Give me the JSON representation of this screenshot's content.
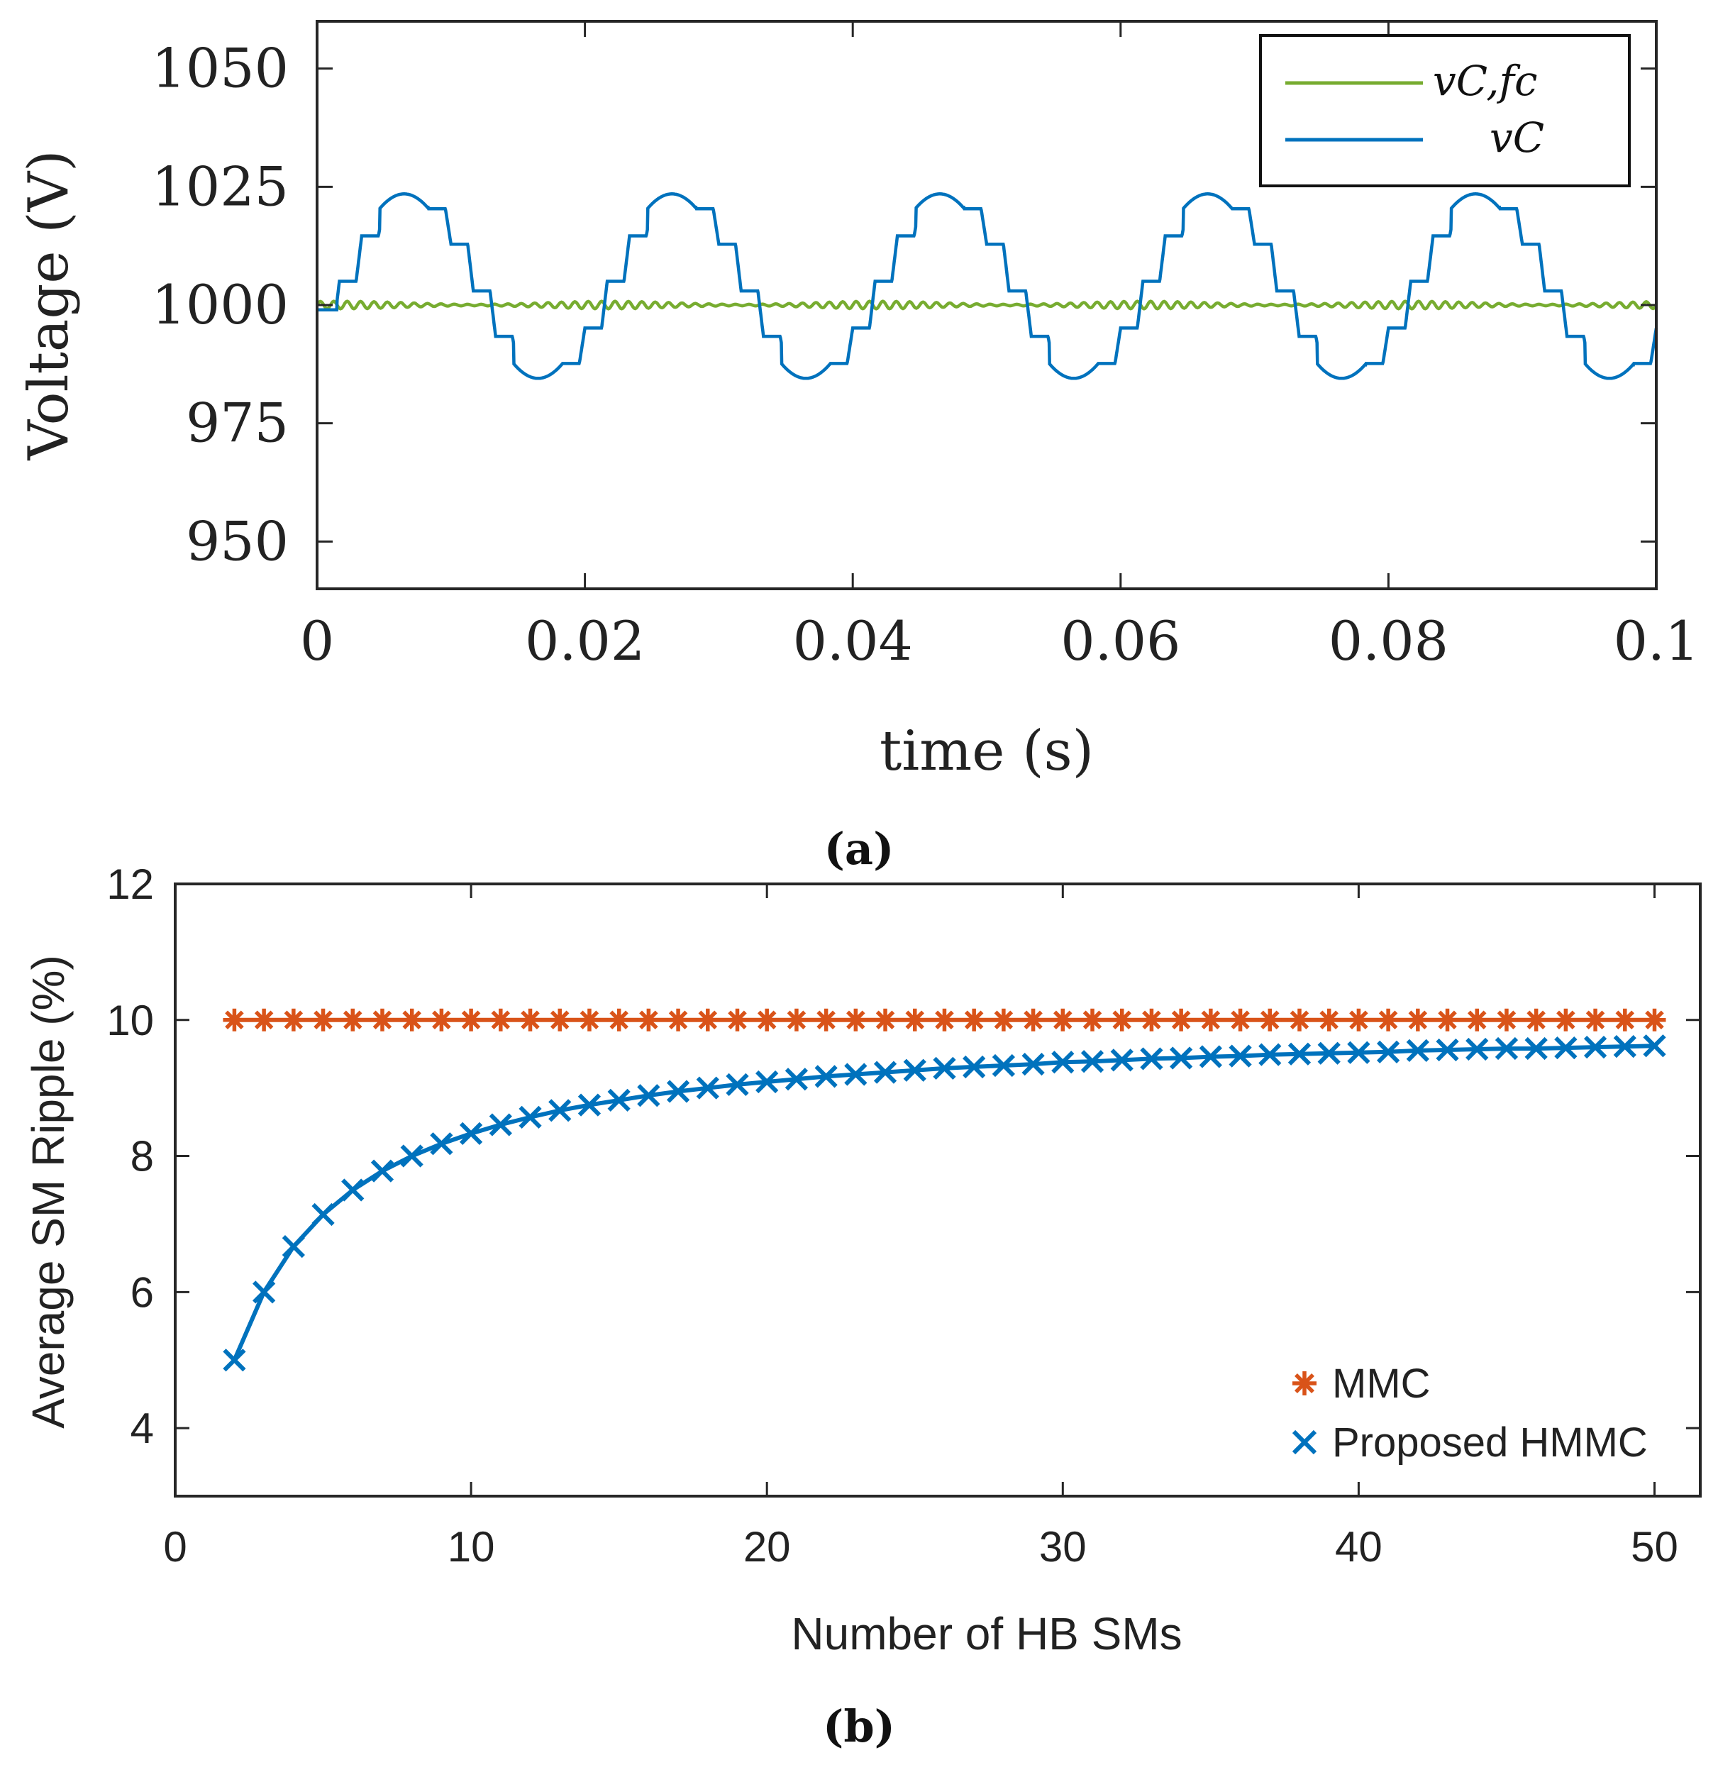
{
  "chart_data": [
    {
      "id": "a",
      "type": "line",
      "caption": "(a)",
      "xlabel": "time (s)",
      "ylabel": "Voltage (V)",
      "xlim": [
        0,
        0.1
      ],
      "ylim": [
        940,
        1060
      ],
      "xticks": [
        0,
        0.02,
        0.04,
        0.06,
        0.08,
        0.1
      ],
      "xtick_labels": [
        "0",
        "0.02",
        "0.04",
        "0.06",
        "0.08",
        "0.1"
      ],
      "yticks": [
        950,
        975,
        1000,
        1025,
        1050
      ],
      "ytick_labels": [
        "950",
        "975",
        "1000",
        "1025",
        "1050"
      ],
      "grid": false,
      "legend_position": "top-right",
      "series": [
        {
          "name": "v_C,fc",
          "label": "vC,fc",
          "color": "#77AC30",
          "model": {
            "offset": 1000,
            "amplitude": 0.8,
            "ripple_frequency_hz": 1000
          }
        },
        {
          "name": "v_C",
          "label": "vC",
          "color": "#0072BD",
          "model": {
            "offset": 1004,
            "amplitude": 19.5,
            "frequency_hz": 50,
            "steps_per_period": 12,
            "start_value": 999
          }
        }
      ]
    },
    {
      "id": "b",
      "type": "line",
      "caption": "(b)",
      "xlabel": "Number of HB SMs",
      "ylabel": "Average SM Ripple (%)",
      "xlim": [
        0,
        50
      ],
      "ylim": [
        3,
        12
      ],
      "xticks": [
        0,
        10,
        20,
        30,
        40,
        50
      ],
      "xtick_labels": [
        "0",
        "10",
        "20",
        "30",
        "40",
        "50"
      ],
      "yticks": [
        4,
        6,
        8,
        10,
        12
      ],
      "ytick_labels": [
        "4",
        "6",
        "8",
        "10",
        "12"
      ],
      "grid": false,
      "legend_position": "bottom-right",
      "series": [
        {
          "name": "MMC",
          "color": "#D95319",
          "marker": "asterisk",
          "x": [
            2,
            3,
            4,
            5,
            6,
            7,
            8,
            9,
            10,
            11,
            12,
            13,
            14,
            15,
            16,
            17,
            18,
            19,
            20,
            21,
            22,
            23,
            24,
            25,
            26,
            27,
            28,
            29,
            30,
            31,
            32,
            33,
            34,
            35,
            36,
            37,
            38,
            39,
            40,
            41,
            42,
            43,
            44,
            45,
            46,
            47,
            48,
            49,
            50
          ],
          "y": [
            10,
            10,
            10,
            10,
            10,
            10,
            10,
            10,
            10,
            10,
            10,
            10,
            10,
            10,
            10,
            10,
            10,
            10,
            10,
            10,
            10,
            10,
            10,
            10,
            10,
            10,
            10,
            10,
            10,
            10,
            10,
            10,
            10,
            10,
            10,
            10,
            10,
            10,
            10,
            10,
            10,
            10,
            10,
            10,
            10,
            10,
            10,
            10,
            10
          ]
        },
        {
          "name": "Proposed HMMC",
          "color": "#0072BD",
          "marker": "x",
          "x": [
            2,
            3,
            4,
            5,
            6,
            7,
            8,
            9,
            10,
            11,
            12,
            13,
            14,
            15,
            16,
            17,
            18,
            19,
            20,
            21,
            22,
            23,
            24,
            25,
            26,
            27,
            28,
            29,
            30,
            31,
            32,
            33,
            34,
            35,
            36,
            37,
            38,
            39,
            40,
            41,
            42,
            43,
            44,
            45,
            46,
            47,
            48,
            49,
            50
          ],
          "y": [
            5.0,
            6.0,
            6.67,
            7.14,
            7.5,
            7.78,
            8.0,
            8.18,
            8.33,
            8.46,
            8.57,
            8.67,
            8.75,
            8.82,
            8.89,
            8.95,
            9.0,
            9.05,
            9.09,
            9.13,
            9.17,
            9.2,
            9.23,
            9.26,
            9.29,
            9.31,
            9.33,
            9.35,
            9.38,
            9.39,
            9.41,
            9.43,
            9.44,
            9.46,
            9.47,
            9.49,
            9.5,
            9.51,
            9.52,
            9.53,
            9.55,
            9.56,
            9.57,
            9.58,
            9.58,
            9.59,
            9.6,
            9.61,
            9.62
          ]
        }
      ]
    }
  ]
}
